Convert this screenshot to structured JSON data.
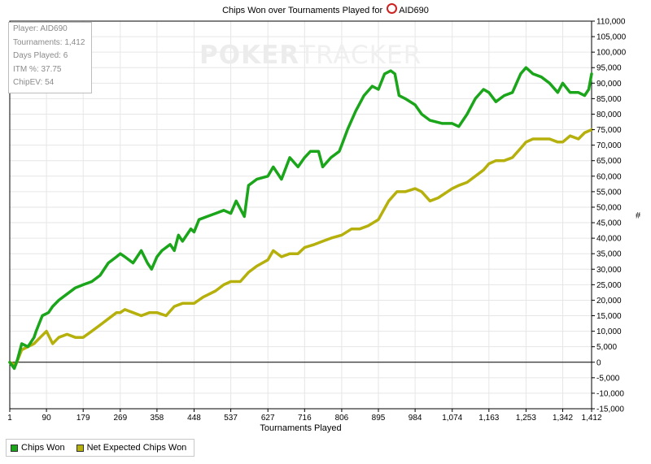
{
  "header": {
    "title_prefix": "Chips Won over Tournaments Played for",
    "player_name": "AID690"
  },
  "watermark": {
    "part1": "POKER",
    "part2": "TRACKER"
  },
  "info": {
    "player": "Player: AID690",
    "tournaments": "Tournaments: 1,412",
    "days": "Days Played: 6",
    "itm": "ITM %: 37.75",
    "chipev": "ChipEV: 54"
  },
  "legend": {
    "chips_won": "Chips Won",
    "net_expected": "Net Expected Chips Won"
  },
  "colors": {
    "chips_won": "#1aa51a",
    "net_expected": "#b5b00c",
    "grid": "#e6e6e6",
    "zero_line": "#000000"
  },
  "chart_data": {
    "type": "line",
    "title": "Chips Won over Tournaments Played for AID690",
    "xlabel": "Tournaments Played",
    "ylabel": "#",
    "xlim": [
      1,
      1412
    ],
    "ylim": [
      -15000,
      110000
    ],
    "grid": true,
    "legend_position": "bottom-left",
    "x_ticks": [
      1,
      90,
      179,
      269,
      358,
      448,
      537,
      627,
      716,
      806,
      895,
      984,
      1074,
      1163,
      1253,
      1342,
      1412
    ],
    "x_tick_labels": [
      "1",
      "90",
      "179",
      "269",
      "358",
      "448",
      "537",
      "627",
      "716",
      "806",
      "895",
      "984",
      "1,074",
      "1,163",
      "1,253",
      "1,342",
      "1,412"
    ],
    "y_ticks": [
      -15000,
      -10000,
      -5000,
      0,
      5000,
      10000,
      15000,
      20000,
      25000,
      30000,
      35000,
      40000,
      45000,
      50000,
      55000,
      60000,
      65000,
      70000,
      75000,
      80000,
      85000,
      90000,
      95000,
      100000,
      105000,
      110000
    ],
    "y_tick_labels": [
      "-15,000",
      "-10,000",
      "-5,000",
      "0",
      "5,000",
      "10,000",
      "15,000",
      "20,000",
      "25,000",
      "30,000",
      "35,000",
      "40,000",
      "45,000",
      "50,000",
      "55,000",
      "60,000",
      "65,000",
      "70,000",
      "75,000",
      "80,000",
      "85,000",
      "90,000",
      "95,000",
      "100,000",
      "105,000",
      "110,000"
    ],
    "series": [
      {
        "name": "Chips Won",
        "color": "#1aa51a",
        "x": [
          1,
          12,
          20,
          30,
          45,
          60,
          65,
          80,
          95,
          105,
          120,
          140,
          160,
          179,
          200,
          220,
          240,
          260,
          269,
          280,
          300,
          320,
          335,
          345,
          358,
          370,
          390,
          400,
          410,
          420,
          440,
          448,
          460,
          480,
          500,
          520,
          537,
          550,
          570,
          580,
          590,
          600,
          627,
          640,
          660,
          680,
          700,
          716,
          730,
          750,
          760,
          780,
          800,
          806,
          820,
          840,
          860,
          880,
          895,
          910,
          925,
          935,
          945,
          960,
          984,
          1000,
          1020,
          1050,
          1074,
          1090,
          1110,
          1130,
          1150,
          1163,
          1180,
          1200,
          1220,
          1240,
          1253,
          1270,
          1290,
          1310,
          1330,
          1342,
          1360,
          1380,
          1395,
          1405,
          1412
        ],
        "y": [
          0,
          -2000,
          1000,
          6000,
          5000,
          8000,
          10000,
          15000,
          16000,
          18000,
          20000,
          22000,
          24000,
          25000,
          26000,
          28000,
          32000,
          34000,
          35000,
          34000,
          32000,
          36000,
          32000,
          30000,
          34000,
          36000,
          38000,
          36000,
          41000,
          39000,
          43000,
          42000,
          46000,
          47000,
          48000,
          49000,
          48000,
          52000,
          47000,
          57000,
          58000,
          59000,
          60000,
          63000,
          59000,
          66000,
          63000,
          66000,
          68000,
          68000,
          63000,
          66000,
          68000,
          70000,
          75000,
          81000,
          86000,
          89000,
          88000,
          93000,
          94000,
          93000,
          86000,
          85000,
          83000,
          80000,
          78000,
          77000,
          77000,
          76000,
          80000,
          85000,
          88000,
          87000,
          84000,
          86000,
          87000,
          93000,
          95000,
          93000,
          92000,
          90000,
          87000,
          90000,
          87000,
          87000,
          86000,
          88000,
          93000
        ]
      },
      {
        "name": "Net Expected Chips Won",
        "color": "#b5b00c",
        "x": [
          1,
          15,
          30,
          45,
          60,
          75,
          90,
          105,
          120,
          140,
          160,
          179,
          200,
          220,
          240,
          260,
          269,
          280,
          300,
          320,
          340,
          358,
          380,
          400,
          420,
          448,
          470,
          500,
          520,
          537,
          560,
          580,
          600,
          627,
          640,
          660,
          680,
          700,
          716,
          740,
          760,
          780,
          806,
          830,
          850,
          870,
          895,
          920,
          940,
          960,
          984,
          1000,
          1020,
          1040,
          1074,
          1090,
          1110,
          1130,
          1150,
          1163,
          1180,
          1200,
          1220,
          1240,
          1253,
          1270,
          1290,
          1310,
          1330,
          1342,
          1360,
          1380,
          1395,
          1412
        ],
        "y": [
          0,
          -1000,
          4000,
          5000,
          6000,
          8000,
          10000,
          6000,
          8000,
          9000,
          8000,
          8000,
          10000,
          12000,
          14000,
          16000,
          16000,
          17000,
          16000,
          15000,
          16000,
          16000,
          15000,
          18000,
          19000,
          19000,
          21000,
          23000,
          25000,
          26000,
          26000,
          29000,
          31000,
          33000,
          36000,
          34000,
          35000,
          35000,
          37000,
          38000,
          39000,
          40000,
          41000,
          43000,
          43000,
          44000,
          46000,
          52000,
          55000,
          55000,
          56000,
          55000,
          52000,
          53000,
          56000,
          57000,
          58000,
          60000,
          62000,
          64000,
          65000,
          65000,
          66000,
          69000,
          71000,
          72000,
          72000,
          72000,
          71000,
          71000,
          73000,
          72000,
          74000,
          75000
        ]
      }
    ]
  }
}
